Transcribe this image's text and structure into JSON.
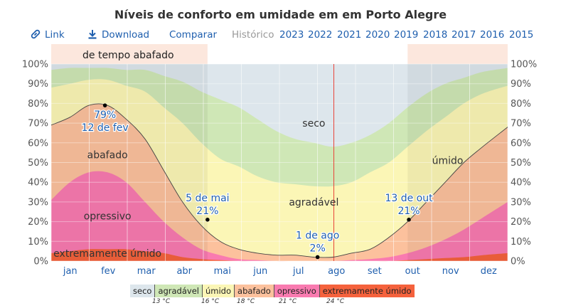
{
  "header": {
    "title": "Níveis de conforto em umidade em em Porto Alegre",
    "link_label": "Link",
    "download_label": "Download",
    "compare_label": "Comparar",
    "history_label": "Histórico",
    "years": [
      "2023",
      "2022",
      "2021",
      "2020",
      "2019",
      "2018",
      "2017",
      "2016",
      "2015"
    ]
  },
  "colors": {
    "seco": "#dde6ec",
    "agradavel": "#cfe7b6",
    "umido": "#fbf6b6",
    "abafado": "#fcc19d",
    "opressivo": "#f97bb0",
    "extremamente_umido": "#f5623d",
    "accent": "#1f5fae",
    "today_line": "#e8443a"
  },
  "chart_data": {
    "type": "area",
    "x_unit": "day of year",
    "months": [
      "jan",
      "fev",
      "mar",
      "abr",
      "mai",
      "jun",
      "jul",
      "ago",
      "set",
      "out",
      "nov",
      "dez"
    ],
    "ylim": [
      0,
      100
    ],
    "y_ticks": [
      "0%",
      "10%",
      "20%",
      "30%",
      "40%",
      "50%",
      "60%",
      "70%",
      "80%",
      "90%",
      "100%"
    ],
    "grid": true,
    "current_day": 226,
    "bands_note": "cumulative percent of time at or above each comfort level",
    "x": [
      0,
      15,
      30,
      45,
      60,
      75,
      90,
      105,
      120,
      135,
      150,
      165,
      180,
      195,
      210,
      225,
      240,
      255,
      270,
      285,
      300,
      315,
      330,
      345,
      365
    ],
    "cum_extremamente_umido": [
      4,
      5,
      6,
      6,
      6,
      5,
      4,
      2,
      1,
      0.5,
      0,
      0,
      0,
      0,
      0,
      0,
      0,
      0,
      0,
      0.5,
      1,
      1.5,
      2,
      3,
      4
    ],
    "cum_opressivo": [
      31,
      40,
      45,
      45,
      40,
      30,
      20,
      12,
      6,
      3,
      1,
      0.5,
      0,
      0,
      0,
      0,
      0.5,
      1,
      2,
      4,
      7,
      11,
      16,
      22,
      30
    ],
    "cum_abafado": [
      69,
      73,
      79,
      79,
      72,
      62,
      46,
      30,
      18,
      10,
      6,
      4,
      3,
      3,
      2,
      2,
      4,
      6,
      12,
      20,
      30,
      40,
      50,
      58,
      68
    ],
    "cum_umido": [
      88,
      90,
      92,
      92,
      89,
      86,
      78,
      70,
      60,
      52,
      48,
      43,
      40,
      39,
      38,
      38,
      40,
      45,
      50,
      58,
      66,
      73,
      80,
      85,
      89
    ],
    "cum_agradavel": [
      97,
      98,
      98,
      98,
      97,
      97,
      94,
      91,
      86,
      82,
      78,
      72,
      66,
      62,
      60,
      58,
      60,
      64,
      70,
      78,
      85,
      90,
      93,
      96,
      98
    ],
    "shaded_periods": [
      {
        "label": "de tempo abafado",
        "start": 0,
        "end": 125
      },
      {
        "label": "",
        "start": 285,
        "end": 365
      }
    ],
    "band_labels": [
      {
        "text": "seco",
        "x": 210,
        "y": 70
      },
      {
        "text": "agradável",
        "x": 210,
        "y": 30
      },
      {
        "text": "úmido",
        "x": 317,
        "y": 51
      },
      {
        "text": "abafado",
        "x": 45,
        "y": 54
      },
      {
        "text": "opressivo",
        "x": 45,
        "y": 23
      },
      {
        "text": "extremamente úmido",
        "x": 45,
        "y": 4
      }
    ],
    "annotations": [
      {
        "date": "12 de fev",
        "value": "79%",
        "x": 43,
        "y": 79,
        "pos": "below"
      },
      {
        "date": "5 de mai",
        "value": "21%",
        "x": 125,
        "y": 21,
        "pos": "above"
      },
      {
        "date": "1 de ago",
        "value": "2%",
        "x": 213,
        "y": 2,
        "pos": "above"
      },
      {
        "date": "13 de out",
        "value": "21%",
        "x": 286,
        "y": 21,
        "pos": "above"
      }
    ]
  },
  "legend": {
    "items": [
      {
        "label": "seco",
        "key": "seco"
      },
      {
        "label": "agradável",
        "key": "agradavel"
      },
      {
        "label": "úmido",
        "key": "umido"
      },
      {
        "label": "abafado",
        "key": "abafado"
      },
      {
        "label": "opressivo",
        "key": "opressivo"
      },
      {
        "label": "extremamente úmido",
        "key": "extremamente_umido"
      }
    ],
    "temps": [
      "13 °C",
      "16 °C",
      "18 °C",
      "21 °C",
      "24 °C"
    ]
  }
}
